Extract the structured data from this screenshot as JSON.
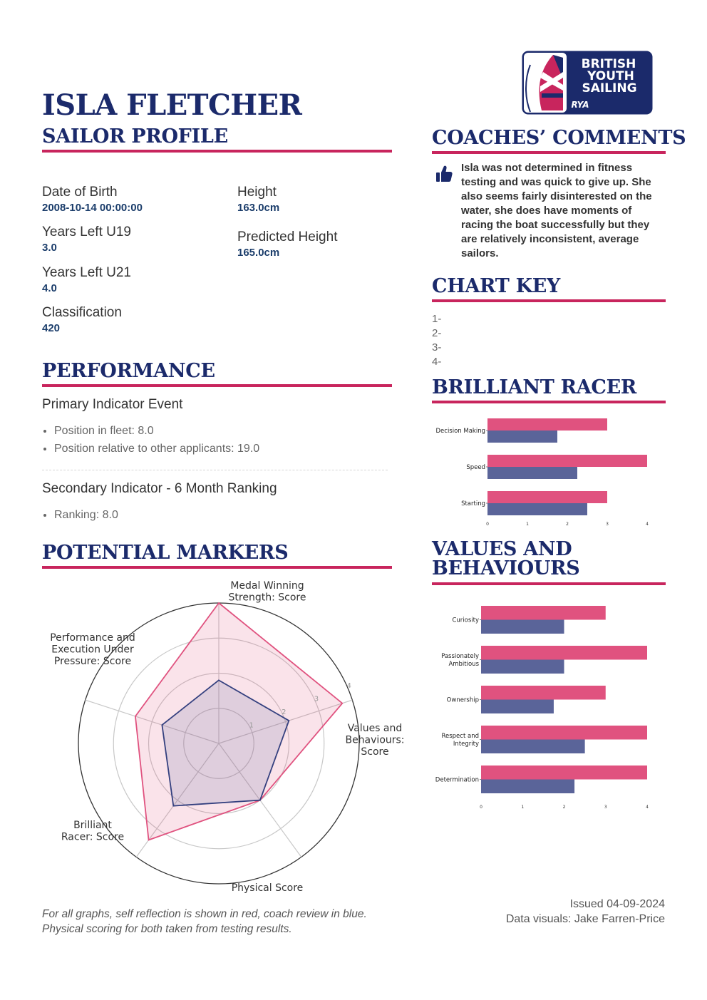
{
  "logo": {
    "line1": "BRITISH",
    "line2": "YOUTH",
    "line3": "SAILING",
    "badge": "RYA"
  },
  "sailor": {
    "name": "ISLA FLETCHER",
    "subtitle": "SAILOR PROFILE"
  },
  "profile": {
    "dob_label": "Date of Birth",
    "dob_value": "2008-10-14 00:00:00",
    "u19_label": "Years Left U19",
    "u19_value": "3.0",
    "u21_label": "Years Left U21",
    "u21_value": "4.0",
    "class_label": "Classification",
    "class_value": "420",
    "height_label": "Height",
    "height_value": "163.0cm",
    "pred_label": "Predicted Height",
    "pred_value": "165.0cm"
  },
  "performance": {
    "title": "PERFORMANCE",
    "primary_title": "Primary Indicator Event",
    "primary_items": [
      "Position in fleet: 8.0",
      "Position relative to other applicants: 19.0"
    ],
    "secondary_title": "Secondary Indicator - 6 Month Ranking",
    "secondary_items": [
      "Ranking: 8.0"
    ]
  },
  "potential": {
    "title": "POTENTIAL MARKERS"
  },
  "comments": {
    "title": "COACHES’ COMMENTS",
    "icon": "thumbs-up-icon",
    "text": "Isla was not determined in fitness testing and was quick to give up. She also seems fairly disinterested on the water, she does have moments of racing the boat successfully but they are relatively inconsistent, average sailors."
  },
  "chart_key": {
    "title": "CHART KEY",
    "items": [
      "1-",
      "2-",
      "3-",
      "4-"
    ]
  },
  "brilliant": {
    "title": "BRILLIANT RACER"
  },
  "values": {
    "title_line1": "VALUES AND",
    "title_line2": "BEHAVIOURS"
  },
  "footer": {
    "note": "For all graphs, self reflection is shown in red, coach review in blue. Physical scoring for both taken from testing results.",
    "issued": "Issued 04-09-2024",
    "credit": "Data visuals: Jake Farren-Price"
  },
  "colors": {
    "navy": "#1b2a6b",
    "accent": "#c8255d",
    "self": "#e0527f",
    "coach": "#5a6499"
  },
  "chart_data": [
    {
      "type": "radar",
      "id": "potential-markers",
      "categories": [
        "Medal Winning Strength: Score",
        "Values and Behaviours: Score",
        "Physical Score",
        "Brilliant Racer: Score",
        "Performance and Execution Under Pressure: Score"
      ],
      "label_lines": [
        [
          "Medal Winning",
          "Strength: Score"
        ],
        [
          "Values and",
          "Behaviours:",
          "Score"
        ],
        [
          "Physical Score"
        ],
        [
          "Brilliant",
          "Racer: Score"
        ],
        [
          "Performance and",
          "Execution Under",
          "Pressure: Score"
        ]
      ],
      "rlim": [
        0,
        4
      ],
      "rticks": [
        "1",
        "2",
        "3",
        "4"
      ],
      "series": [
        {
          "name": "Self reflection",
          "values": [
            4.0,
            3.7,
            2.0,
            3.4,
            2.5
          ]
        },
        {
          "name": "Coach review",
          "values": [
            1.8,
            2.1,
            2.0,
            2.2,
            1.7
          ]
        }
      ]
    },
    {
      "type": "bar",
      "orientation": "horizontal",
      "id": "brilliant-racer",
      "categories": [
        "Decision Making",
        "Speed",
        "Starting"
      ],
      "series": [
        {
          "name": "Self reflection",
          "values": [
            3.0,
            4.0,
            3.0
          ]
        },
        {
          "name": "Coach review",
          "values": [
            1.75,
            2.25,
            2.5
          ]
        }
      ],
      "xlim": [
        0,
        4
      ],
      "xticks": [
        "0",
        "1",
        "2",
        "3",
        "4"
      ]
    },
    {
      "type": "bar",
      "orientation": "horizontal",
      "id": "values-behaviours",
      "categories": [
        "Curiosity",
        "Passionately Ambitious",
        "Ownership",
        "Respect and Integrity",
        "Determination"
      ],
      "label_lines": [
        [
          "Curiosity"
        ],
        [
          "Passionately",
          "Ambitious"
        ],
        [
          "Ownership"
        ],
        [
          "Respect and",
          "Integrity"
        ],
        [
          "Determination"
        ]
      ],
      "series": [
        {
          "name": "Self reflection",
          "values": [
            3.0,
            4.0,
            3.0,
            4.0,
            4.0
          ]
        },
        {
          "name": "Coach review",
          "values": [
            2.0,
            2.0,
            1.75,
            2.5,
            2.25
          ]
        }
      ],
      "xlim": [
        0,
        4
      ],
      "xticks": [
        "0",
        "1",
        "2",
        "3",
        "4"
      ]
    }
  ]
}
